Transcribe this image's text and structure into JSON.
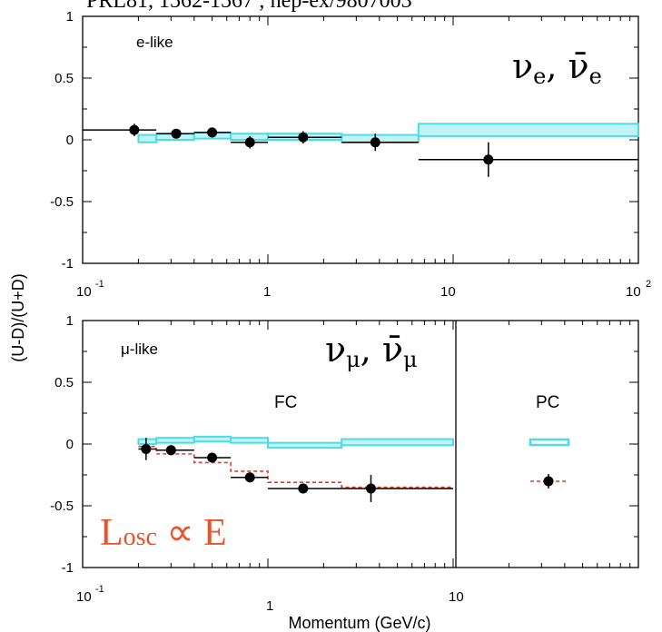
{
  "header_text": "PRL81, 1562-1567 ; hep-ex/9807003",
  "ylabel_shared": "(U-D)/(U+D)",
  "chart_data": [
    {
      "type": "scatter",
      "panel": "top",
      "label": "e-like",
      "corner_text": {
        "main": "ν",
        "sub": "e",
        "sep": ", ",
        "bar_main": "ν̄",
        "bar_sub": "e"
      },
      "xscale": "log",
      "xlim": [
        0.1,
        100
      ],
      "ylim": [
        -1,
        1
      ],
      "x_tick_labels": [
        "10",
        "-1",
        "1",
        "10",
        "10",
        "2"
      ],
      "y_ticks": [
        1,
        0.5,
        0,
        -0.5,
        -1
      ],
      "y_tick_labels": [
        "1",
        "0.5",
        "0",
        "-0.5",
        "-1"
      ],
      "series": [
        {
          "name": "data",
          "points": [
            {
              "x": 0.19,
              "y": 0.08,
              "xlo": 0.1,
              "xhi": 0.25,
              "ylo": 0.03,
              "yhi": 0.13
            },
            {
              "x": 0.32,
              "y": 0.05,
              "xlo": 0.25,
              "xhi": 0.4,
              "ylo": 0.02,
              "yhi": 0.08
            },
            {
              "x": 0.5,
              "y": 0.06,
              "xlo": 0.4,
              "xhi": 0.63,
              "ylo": 0.02,
              "yhi": 0.1
            },
            {
              "x": 0.8,
              "y": -0.02,
              "xlo": 0.63,
              "xhi": 1.0,
              "ylo": -0.07,
              "yhi": 0.03
            },
            {
              "x": 1.55,
              "y": 0.02,
              "xlo": 1.0,
              "xhi": 2.5,
              "ylo": -0.03,
              "yhi": 0.07
            },
            {
              "x": 3.8,
              "y": -0.02,
              "xlo": 2.5,
              "xhi": 6.5,
              "ylo": -0.09,
              "yhi": 0.05
            },
            {
              "x": 15.5,
              "y": -0.16,
              "xlo": 6.5,
              "xhi": 100,
              "ylo": -0.3,
              "yhi": -0.02
            }
          ]
        },
        {
          "name": "MC",
          "bins": [
            {
              "xlo": 0.2,
              "xhi": 0.25,
              "ylo": -0.02,
              "yhi": 0.04
            },
            {
              "xlo": 0.25,
              "xhi": 0.4,
              "ylo": 0.0,
              "yhi": 0.05
            },
            {
              "xlo": 0.4,
              "xhi": 0.63,
              "ylo": 0.01,
              "yhi": 0.06
            },
            {
              "xlo": 0.63,
              "xhi": 1.0,
              "ylo": 0.0,
              "yhi": 0.05
            },
            {
              "xlo": 1.0,
              "xhi": 2.5,
              "ylo": 0.0,
              "yhi": 0.05
            },
            {
              "xlo": 2.5,
              "xhi": 6.5,
              "ylo": -0.02,
              "yhi": 0.04
            },
            {
              "xlo": 6.5,
              "xhi": 100,
              "ylo": 0.03,
              "yhi": 0.13
            }
          ]
        }
      ]
    },
    {
      "type": "scatter",
      "panel": "bottom",
      "label": "μ-like",
      "corner_text": {
        "main": "ν",
        "sub": "μ",
        "sep": ", ",
        "bar_main": "ν̄",
        "bar_sub": "μ"
      },
      "xscale": "log",
      "xlim": [
        0.1,
        100
      ],
      "ylim": [
        -1,
        1
      ],
      "x_tick_labels": [
        "10",
        "-1",
        "1",
        "10"
      ],
      "xlabel": "Momentum (GeV/c)",
      "y_ticks": [
        1,
        0.5,
        0,
        -0.5,
        -1
      ],
      "y_tick_labels": [
        "1",
        "0.5",
        "0",
        "-0.5",
        "-1"
      ],
      "regions": [
        "FC",
        "PC"
      ],
      "annotation": {
        "main": "L",
        "sub": "osc",
        "rest": " ∝ E"
      },
      "series": [
        {
          "name": "data",
          "points": [
            {
              "x": 0.22,
              "y": -0.04,
              "xlo": 0.2,
              "xhi": 0.25,
              "ylo": -0.13,
              "yhi": 0.05
            },
            {
              "x": 0.3,
              "y": -0.05,
              "xlo": 0.25,
              "xhi": 0.4,
              "ylo": -0.09,
              "yhi": -0.01
            },
            {
              "x": 0.5,
              "y": -0.11,
              "xlo": 0.4,
              "xhi": 0.63,
              "ylo": -0.15,
              "yhi": -0.07
            },
            {
              "x": 0.8,
              "y": -0.27,
              "xlo": 0.63,
              "xhi": 1.0,
              "ylo": -0.31,
              "yhi": -0.23
            },
            {
              "x": 1.55,
              "y": -0.36,
              "xlo": 1.0,
              "xhi": 2.5,
              "ylo": -0.39,
              "yhi": -0.33
            },
            {
              "x": 3.6,
              "y": -0.36,
              "xlo": 2.5,
              "xhi": 10,
              "ylo": -0.47,
              "yhi": -0.25
            }
          ]
        },
        {
          "name": "MC",
          "bins": [
            {
              "xlo": 0.2,
              "xhi": 0.25,
              "ylo": 0.0,
              "yhi": 0.04
            },
            {
              "xlo": 0.25,
              "xhi": 0.4,
              "ylo": 0.01,
              "yhi": 0.05
            },
            {
              "xlo": 0.4,
              "xhi": 0.63,
              "ylo": 0.02,
              "yhi": 0.06
            },
            {
              "xlo": 0.63,
              "xhi": 1.0,
              "ylo": 0.01,
              "yhi": 0.05
            },
            {
              "xlo": 1.0,
              "xhi": 2.5,
              "ylo": -0.03,
              "yhi": 0.01
            },
            {
              "xlo": 2.5,
              "xhi": 10,
              "ylo": -0.01,
              "yhi": 0.04
            }
          ]
        },
        {
          "name": "oscillation",
          "steps": [
            {
              "xlo": 0.2,
              "xhi": 0.25,
              "y": -0.02
            },
            {
              "xlo": 0.25,
              "xhi": 0.4,
              "y": -0.08
            },
            {
              "xlo": 0.4,
              "xhi": 0.63,
              "y": -0.15
            },
            {
              "xlo": 0.63,
              "xhi": 1.0,
              "y": -0.22
            },
            {
              "xlo": 1.0,
              "xhi": 2.5,
              "y": -0.31
            },
            {
              "xlo": 2.5,
              "xhi": 10,
              "y": -0.35
            }
          ]
        },
        {
          "name": "PC legend",
          "legend": true
        }
      ]
    }
  ],
  "colors": {
    "mc": "#4ddbe6",
    "mc_fill": "#bff3f6",
    "osc": "#e33a2a",
    "losc": "#e8532b",
    "data": "#000000"
  }
}
